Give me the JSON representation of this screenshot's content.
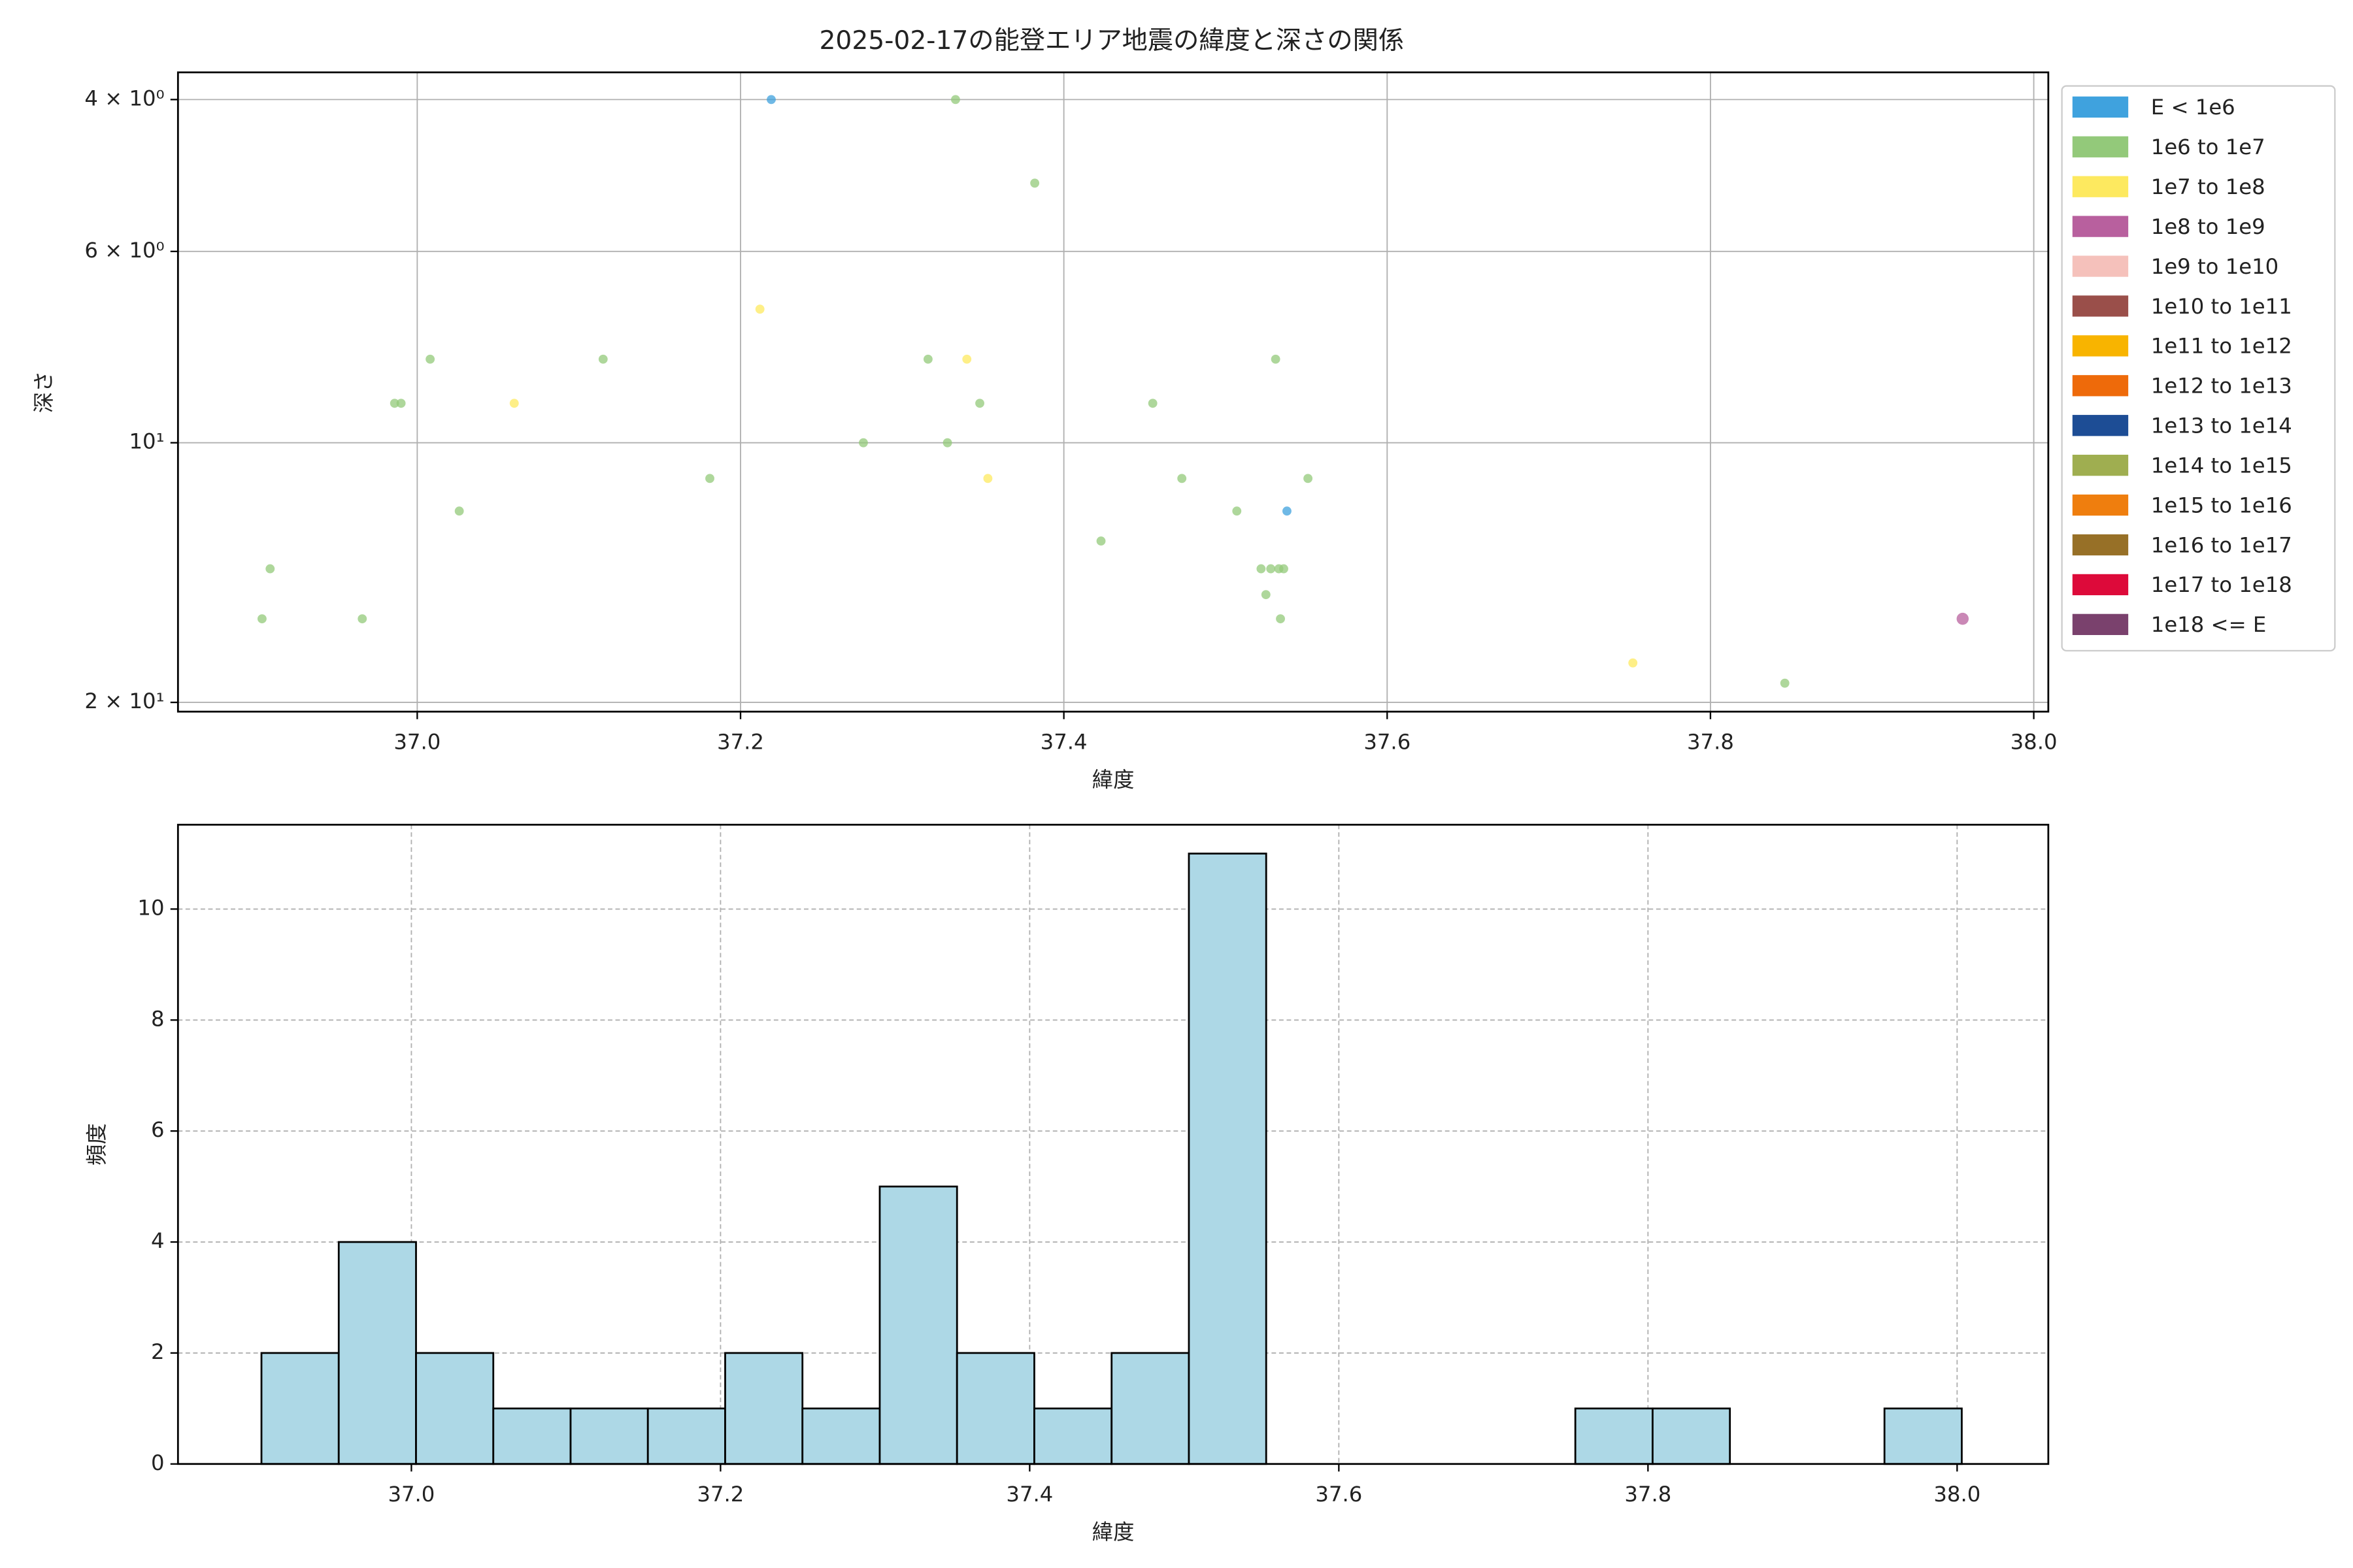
{
  "chart_data": [
    {
      "type": "scatter",
      "title": "2025-02-17の能登エリア地震の緯度と深さの関係",
      "x_label": "緯度",
      "y_label": "深さ",
      "yscale": "log",
      "grid": true,
      "legend": "outside-right",
      "xlim": [
        36.852,
        38.009
      ],
      "ylim": [
        20.5,
        3.72
      ],
      "xticks": [
        {
          "value": 37,
          "label": "37.0"
        },
        37.2,
        37.4,
        37.6,
        37.8,
        {
          "value": 38,
          "label": "38.0"
        }
      ],
      "yticks": [
        {
          "value": 4,
          "label": "4 × 10⁰"
        },
        {
          "value": 6,
          "label": "6 × 10⁰"
        },
        {
          "value": 10,
          "label": "10¹"
        },
        {
          "value": 20,
          "label": "2 × 10¹"
        }
      ],
      "series": [
        {
          "name": "E < 1e6",
          "color": "#3fa2de",
          "x": [
            37.219,
            37.538
          ],
          "values": [
            4,
            12
          ]
        },
        {
          "name": "1e6 to 1e7",
          "color": "#93c97a",
          "x": [
            37.333,
            37.382,
            37.008,
            37.115,
            37.316,
            37.531,
            36.986,
            36.99,
            37.348,
            37.455,
            37.276,
            37.328,
            37.181,
            37.473,
            37.551,
            37.026,
            37.507,
            37.423,
            36.909,
            37.522,
            37.528,
            37.533,
            37.536,
            37.525,
            36.904,
            36.966,
            37.534,
            37.846
          ],
          "values": [
            4,
            5,
            8,
            8,
            8,
            8,
            9,
            9,
            9,
            9,
            10,
            10,
            11,
            11,
            11,
            12,
            12,
            13,
            14,
            14,
            14,
            14,
            14,
            15,
            16,
            16,
            16,
            19
          ]
        },
        {
          "name": "1e7 to 1e8",
          "color": "#fde95f",
          "x": [
            37.212,
            37.06,
            37.34,
            37.353,
            37.752
          ],
          "values": [
            7,
            9,
            8,
            11,
            18
          ]
        },
        {
          "name": "1e8 to 1e9",
          "color": "#b8609e",
          "x": [
            37.956
          ],
          "values": [
            16
          ]
        },
        {
          "name": "1e9 to 1e10",
          "color": "#f5c1bb",
          "x": [],
          "values": []
        },
        {
          "name": "1e10 to 1e11",
          "color": "#9a4f4a",
          "x": [],
          "values": []
        },
        {
          "name": "1e11 to 1e12",
          "color": "#f8b400",
          "x": [],
          "values": []
        },
        {
          "name": "1e12 to 1e13",
          "color": "#ee6a0a",
          "x": [],
          "values": []
        },
        {
          "name": "1e13 to 1e14",
          "color": "#1d4d95",
          "x": [],
          "values": []
        },
        {
          "name": "1e14 to 1e15",
          "color": "#9fae50",
          "x": [],
          "values": []
        },
        {
          "name": "1e15 to 1e16",
          "color": "#ef7e0e",
          "x": [],
          "values": []
        },
        {
          "name": "1e16 to 1e17",
          "color": "#977027",
          "x": [],
          "values": []
        },
        {
          "name": "1e17 to 1e18",
          "color": "#dd0a3a",
          "x": [],
          "values": []
        },
        {
          "name": "1e18 <= E",
          "color": "#7a416d",
          "x": [],
          "values": []
        }
      ]
    },
    {
      "type": "histogram",
      "x_label": "緯度",
      "y_label": "頻度",
      "color": "#add8e6",
      "grid": true,
      "xlim": [
        36.849,
        38.059
      ],
      "ylim": [
        0,
        11.52
      ],
      "xticks": [
        {
          "value": 37,
          "label": "37.0"
        },
        37.2,
        37.4,
        37.6,
        37.8,
        {
          "value": 38,
          "label": "38.0"
        }
      ],
      "yticks": [
        0,
        2,
        4,
        6,
        8,
        10
      ],
      "bins": [
        36.903,
        36.953,
        37.003,
        37.053,
        37.103,
        37.153,
        37.203,
        37.253,
        37.303,
        37.353,
        37.403,
        37.453,
        37.503,
        37.553,
        37.603,
        37.653,
        37.703,
        37.753,
        37.803,
        37.853,
        37.903,
        37.953,
        38.003
      ],
      "values": [
        2,
        4,
        2,
        1,
        1,
        1,
        2,
        1,
        5,
        2,
        1,
        2,
        11,
        0,
        0,
        0,
        0,
        1,
        1,
        0,
        0,
        1
      ]
    }
  ]
}
